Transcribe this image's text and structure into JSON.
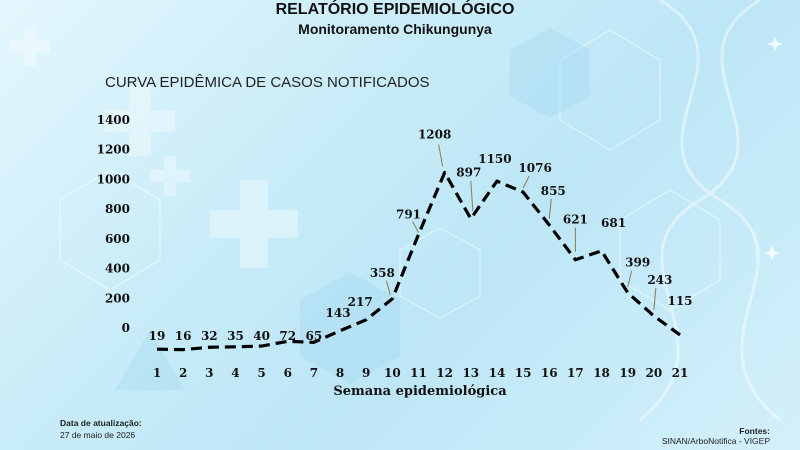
{
  "report": {
    "title": "RELATÓRIO EPIDEMIOLÓGICO",
    "subtitle": "Monitoramento Chikungunya"
  },
  "footer": {
    "update_label": "Data de atualização:",
    "update_date": "27 de maio de 2026",
    "sources_label": "Fontes:",
    "sources": "SINAN/ArboNotifica - VIGEP"
  },
  "colors": {
    "line": "#000000",
    "background_light": "#e4f7fd",
    "background_mid": "#bde6f6",
    "decor": "#ffffff"
  },
  "chart_data": {
    "type": "line",
    "title": "CURVA EPIDÊMICA DE CASOS NOTIFICADOS",
    "xlabel": "Semana epidemiológica",
    "ylabel": "",
    "line_style": "dashed",
    "grid": false,
    "ylim": [
      0,
      1400
    ],
    "yticks": [
      0,
      200,
      400,
      600,
      800,
      1000,
      1200,
      1400
    ],
    "x": [
      "1",
      "2",
      "3",
      "4",
      "5",
      "6",
      "7",
      "8",
      "9",
      "10",
      "11",
      "12",
      "13",
      "14",
      "15",
      "16",
      "17",
      "18",
      "19",
      "20",
      "21"
    ],
    "values": [
      19,
      16,
      32,
      35,
      40,
      72,
      65,
      143,
      217,
      358,
      791,
      1208,
      897,
      1150,
      1076,
      855,
      621,
      681,
      399,
      243,
      115
    ]
  }
}
